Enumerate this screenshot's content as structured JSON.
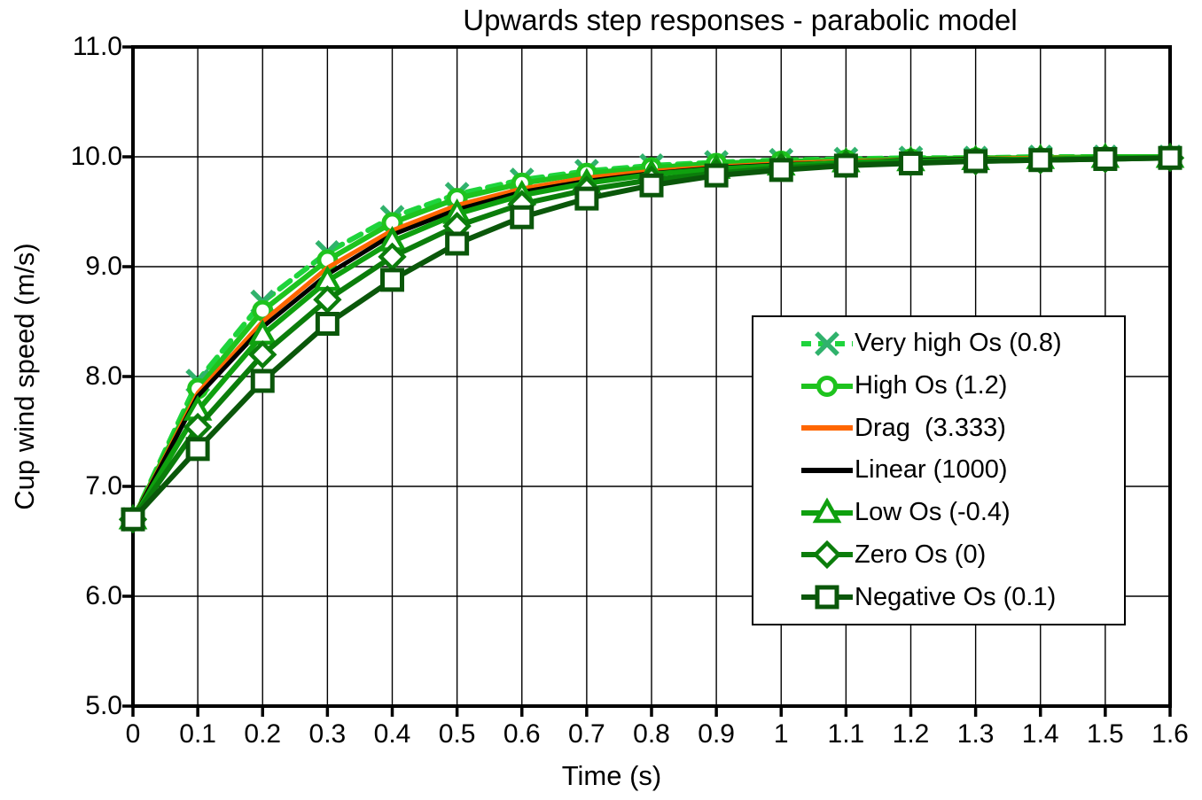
{
  "chart_data": {
    "type": "line",
    "title": "Upwards step responses - parabolic model",
    "xlabel": "Time (s)",
    "ylabel": "Cup wind speed (m/s)",
    "xlim": [
      0,
      1.6
    ],
    "ylim": [
      5.0,
      11.0
    ],
    "grid": true,
    "grid_color": "#000000",
    "axis_color": "#000000",
    "background_color": "#ffffff",
    "legend_position": "right-middle",
    "legend_border_color": "#000000",
    "xticks": [
      "0",
      "0.1",
      "0.2",
      "0.3",
      "0.4",
      "0.5",
      "0.6",
      "0.7",
      "0.8",
      "0.9",
      "1",
      "1.1",
      "1.2",
      "1.3",
      "1.4",
      "1.5",
      "1.6"
    ],
    "yticks": [
      "11.0",
      "10.0",
      "9.0",
      "8.0",
      "7.0",
      "6.0",
      "5.0"
    ],
    "x": [
      0,
      0.1,
      0.2,
      0.3,
      0.4,
      0.5,
      0.6,
      0.7,
      0.8,
      0.9,
      1.0,
      1.1,
      1.2,
      1.3,
      1.4,
      1.5,
      1.6
    ],
    "series": [
      {
        "name": "Very high Os (0.8)",
        "color": "#1ED43C",
        "marker": "x",
        "marker_color": "#30B26C",
        "dash": "15 9",
        "legend_dash": "11 8",
        "values": [
          6.7,
          7.96,
          8.68,
          9.13,
          9.45,
          9.66,
          9.79,
          9.87,
          9.92,
          9.95,
          9.97,
          9.98,
          9.99,
          9.99,
          10.0,
          10.0,
          10.0
        ]
      },
      {
        "name": "High Os (1.2)",
        "color": "#1EC31E",
        "marker": "circle",
        "marker_color": "#1EC31E",
        "dash": "",
        "legend_dash": "",
        "values": [
          6.7,
          7.89,
          8.6,
          9.06,
          9.4,
          9.62,
          9.76,
          9.85,
          9.9,
          9.94,
          9.96,
          9.97,
          9.98,
          9.99,
          9.99,
          10.0,
          10.0
        ]
      },
      {
        "name": "Drag  (3.333)",
        "color": "#FF6600",
        "marker": "none",
        "marker_color": "#FF6600",
        "dash": "",
        "legend_dash": "",
        "values": [
          6.7,
          7.85,
          8.5,
          8.99,
          9.33,
          9.56,
          9.71,
          9.81,
          9.87,
          9.91,
          9.94,
          9.96,
          9.97,
          9.98,
          9.99,
          9.99,
          9.99
        ]
      },
      {
        "name": "Linear (1000)",
        "color": "#000000",
        "marker": "none",
        "marker_color": "#000000",
        "dash": "",
        "legend_dash": "",
        "values": [
          6.7,
          7.82,
          8.45,
          8.93,
          9.29,
          9.52,
          9.68,
          9.78,
          9.85,
          9.9,
          9.93,
          9.95,
          9.97,
          9.98,
          9.98,
          9.99,
          9.99
        ]
      },
      {
        "name": "Low Os (-0.4)",
        "color": "#0FA00F",
        "marker": "triangle",
        "marker_color": "#0FA00F",
        "dash": "",
        "legend_dash": "",
        "values": [
          6.7,
          7.69,
          8.38,
          8.87,
          9.23,
          9.48,
          9.65,
          9.76,
          9.84,
          9.89,
          9.92,
          9.95,
          9.96,
          9.97,
          9.98,
          9.99,
          9.99
        ]
      },
      {
        "name": "Zero Os (0)",
        "color": "#0B7D0B",
        "marker": "diamond",
        "marker_color": "#0B7D0B",
        "dash": "",
        "legend_dash": "",
        "values": [
          6.7,
          7.54,
          8.2,
          8.7,
          9.09,
          9.37,
          9.57,
          9.7,
          9.79,
          9.85,
          9.9,
          9.93,
          9.95,
          9.96,
          9.97,
          9.98,
          9.99
        ]
      },
      {
        "name": "Negative Os (0.1)",
        "color": "#0A570A",
        "marker": "square",
        "marker_color": "#0A570A",
        "dash": "",
        "legend_dash": "",
        "values": [
          6.7,
          7.34,
          7.96,
          8.48,
          8.88,
          9.21,
          9.45,
          9.62,
          9.74,
          9.83,
          9.88,
          9.92,
          9.94,
          9.96,
          9.97,
          9.98,
          9.99
        ]
      }
    ]
  }
}
